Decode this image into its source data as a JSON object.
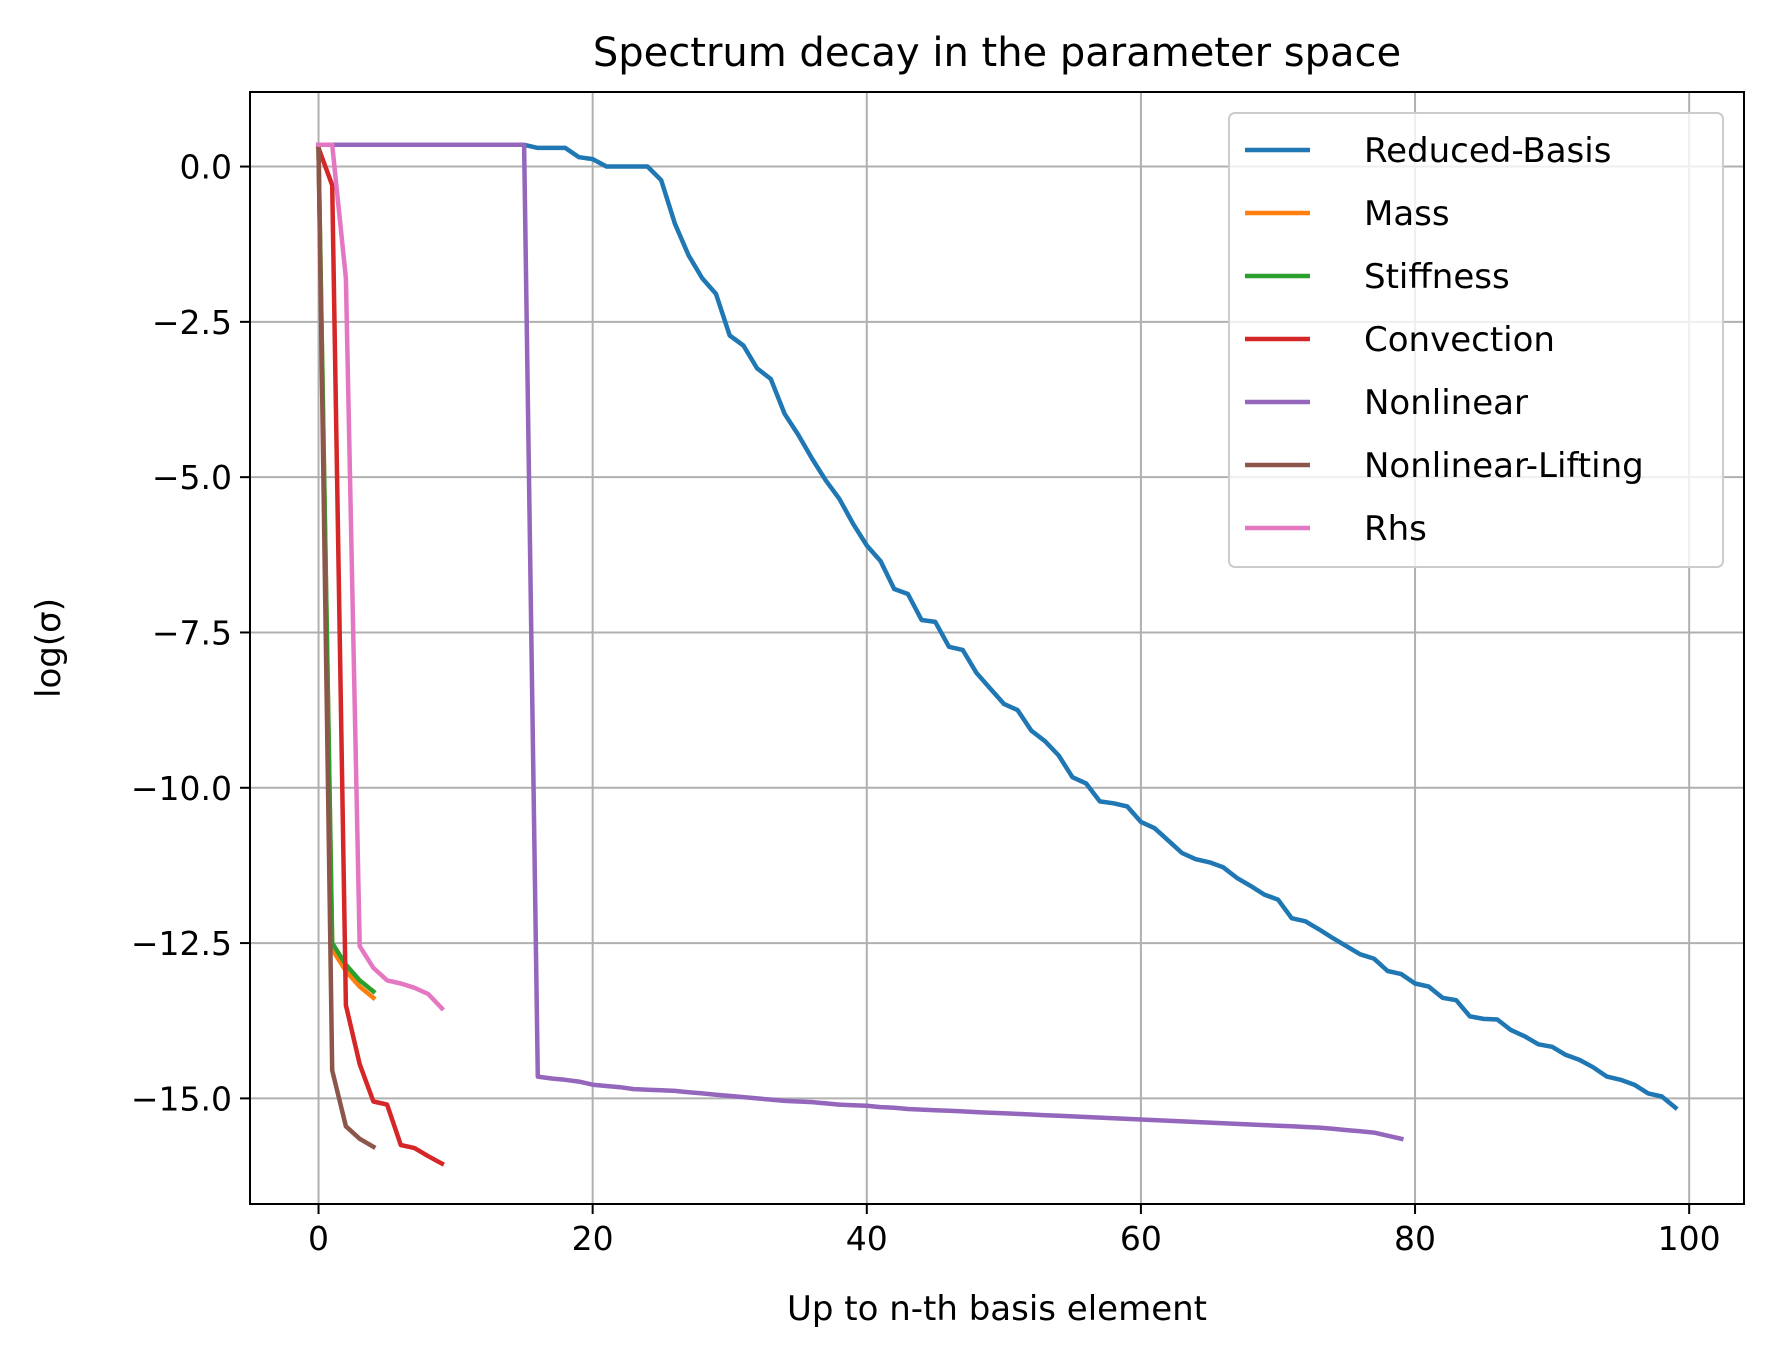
{
  "chart_data": {
    "type": "line",
    "title": "Spectrum decay in the parameter space",
    "xlabel": "Up to n-th basis element",
    "ylabel": "log(σ)",
    "xlim": [
      -5,
      104
    ],
    "ylim": [
      -16.7,
      1.2
    ],
    "xticks": [
      0,
      20,
      40,
      60,
      80,
      100
    ],
    "xtick_labels": [
      "0",
      "20",
      "40",
      "60",
      "80",
      "100"
    ],
    "yticks": [
      0.0,
      -2.5,
      -5.0,
      -7.5,
      -10.0,
      -12.5,
      -15.0
    ],
    "ytick_labels": [
      "0.0",
      "−2.5",
      "−5.0",
      "−7.5",
      "−10.0",
      "−12.5",
      "−15.0"
    ],
    "grid": true,
    "legend_position": "upper right",
    "series": [
      {
        "name": "Reduced-Basis",
        "color": "#1f77b4",
        "x": [
          0,
          15,
          16,
          17,
          18,
          19,
          20,
          21,
          22,
          23,
          24,
          25,
          26,
          27,
          28,
          29,
          30,
          31,
          32,
          33,
          34,
          35,
          36,
          37,
          38,
          39,
          40,
          41,
          42,
          43,
          44,
          45,
          46,
          47,
          48,
          49,
          50,
          51,
          52,
          53,
          54,
          55,
          56,
          57,
          58,
          59,
          60,
          61,
          62,
          63,
          64,
          65,
          66,
          67,
          68,
          69,
          70,
          71,
          72,
          73,
          74,
          75,
          76,
          77,
          78,
          79,
          80,
          81,
          82,
          83,
          84,
          85,
          86,
          87,
          88,
          89,
          90,
          91,
          92,
          93,
          94,
          95,
          96,
          97,
          98,
          99
        ],
        "y": [
          0.35,
          0.35,
          0.3,
          0.3,
          0.3,
          0.15,
          0.12,
          0.0,
          0.0,
          0.0,
          0.0,
          -0.22,
          -0.92,
          -1.43,
          -1.8,
          -2.05,
          -2.72,
          -2.88,
          -3.25,
          -3.42,
          -3.98,
          -4.32,
          -4.7,
          -5.05,
          -5.35,
          -5.75,
          -6.1,
          -6.35,
          -6.8,
          -6.88,
          -7.3,
          -7.33,
          -7.73,
          -7.78,
          -8.15,
          -8.4,
          -8.65,
          -8.75,
          -9.08,
          -9.25,
          -9.48,
          -9.83,
          -9.93,
          -10.22,
          -10.25,
          -10.3,
          -10.55,
          -10.65,
          -10.85,
          -11.05,
          -11.15,
          -11.2,
          -11.28,
          -11.45,
          -11.58,
          -11.72,
          -11.8,
          -12.1,
          -12.15,
          -12.28,
          -12.42,
          -12.55,
          -12.68,
          -12.75,
          -12.95,
          -13.0,
          -13.15,
          -13.2,
          -13.38,
          -13.42,
          -13.68,
          -13.72,
          -13.73,
          -13.9,
          -14.0,
          -14.13,
          -14.17,
          -14.3,
          -14.38,
          -14.5,
          -14.65,
          -14.7,
          -14.78,
          -14.92,
          -14.97,
          -15.15
        ]
      },
      {
        "name": "Mass",
        "color": "#ff7f0e",
        "x": [
          0,
          1,
          2,
          3,
          4
        ],
        "y": [
          0.3,
          -12.6,
          -12.95,
          -13.2,
          -13.38
        ]
      },
      {
        "name": "Stiffness",
        "color": "#2ca02c",
        "x": [
          0,
          1,
          2,
          3,
          4
        ],
        "y": [
          0.3,
          -12.5,
          -12.85,
          -13.1,
          -13.28
        ]
      },
      {
        "name": "Convection",
        "color": "#d62728",
        "x": [
          0,
          1,
          2,
          3,
          4,
          5,
          6,
          7,
          8,
          9
        ],
        "y": [
          0.3,
          -0.3,
          -13.5,
          -14.45,
          -15.05,
          -15.1,
          -15.75,
          -15.8,
          -15.93,
          -16.05
        ]
      },
      {
        "name": "Nonlinear",
        "color": "#9467bd",
        "x": [
          0,
          15,
          16,
          17,
          18,
          19,
          20,
          21,
          22,
          23,
          24,
          25,
          26,
          27,
          28,
          29,
          30,
          31,
          32,
          33,
          34,
          35,
          36,
          37,
          38,
          39,
          40,
          41,
          42,
          43,
          44,
          45,
          46,
          47,
          48,
          49,
          50,
          51,
          52,
          53,
          54,
          55,
          56,
          57,
          58,
          59,
          60,
          61,
          62,
          63,
          64,
          65,
          66,
          67,
          68,
          69,
          70,
          71,
          72,
          73,
          74,
          75,
          76,
          77,
          78,
          79
        ],
        "y": [
          0.35,
          0.35,
          -14.65,
          -14.68,
          -14.7,
          -14.73,
          -14.78,
          -14.8,
          -14.82,
          -14.85,
          -14.86,
          -14.87,
          -14.88,
          -14.9,
          -14.92,
          -14.94,
          -14.96,
          -14.98,
          -15.0,
          -15.02,
          -15.04,
          -15.05,
          -15.06,
          -15.08,
          -15.1,
          -15.11,
          -15.12,
          -15.14,
          -15.15,
          -15.17,
          -15.18,
          -15.19,
          -15.2,
          -15.21,
          -15.22,
          -15.23,
          -15.24,
          -15.25,
          -15.26,
          -15.27,
          -15.28,
          -15.29,
          -15.3,
          -15.31,
          -15.32,
          -15.33,
          -15.34,
          -15.35,
          -15.36,
          -15.37,
          -15.38,
          -15.39,
          -15.4,
          -15.41,
          -15.42,
          -15.43,
          -15.44,
          -15.45,
          -15.46,
          -15.47,
          -15.49,
          -15.51,
          -15.53,
          -15.55,
          -15.6,
          -15.65
        ]
      },
      {
        "name": "Nonlinear-Lifting",
        "color": "#8c564b",
        "x": [
          0,
          1,
          2,
          3,
          4
        ],
        "y": [
          0.3,
          -14.55,
          -15.45,
          -15.65,
          -15.78
        ]
      },
      {
        "name": "Rhs",
        "color": "#e377c2",
        "x": [
          0,
          1,
          2,
          3,
          4,
          5,
          6,
          7,
          8,
          9
        ],
        "y": [
          0.35,
          0.35,
          -1.8,
          -12.55,
          -12.9,
          -13.1,
          -13.15,
          -13.22,
          -13.32,
          -13.55
        ]
      }
    ]
  }
}
